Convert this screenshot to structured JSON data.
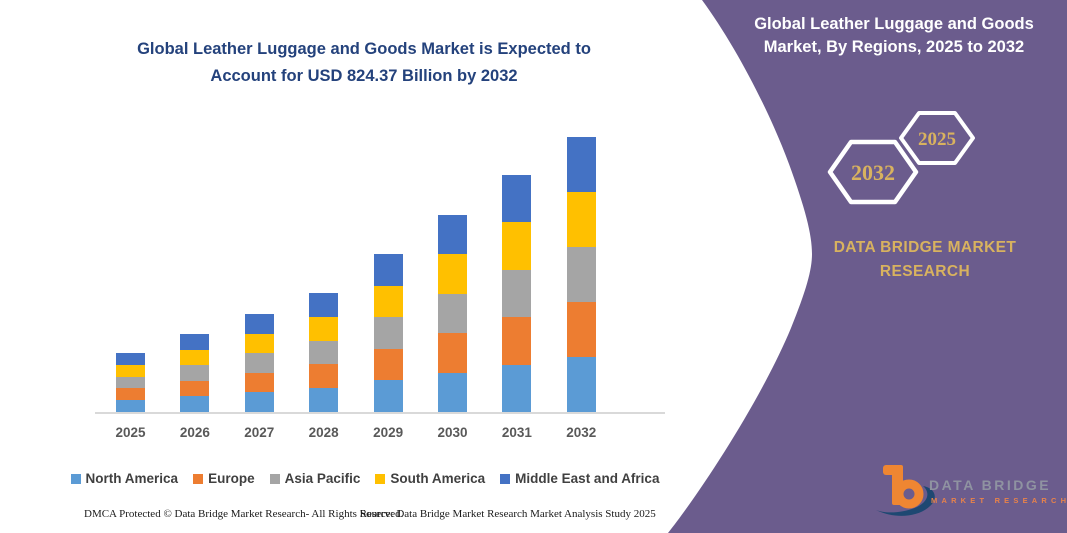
{
  "header": {
    "left_title": "Global Leather Luggage and Goods Market is Expected to Account for USD 824.37 Billion by 2032",
    "right_title": "Global Leather Luggage and Goods Market, By Regions, 2025 to 2032"
  },
  "badges": {
    "start_year": "2025",
    "end_year": "2032"
  },
  "brand": {
    "name": "DATA BRIDGE MARKET RESEARCH",
    "logo_text": "DATA BRIDGE",
    "logo_subtext": "MARKET RESEARCH"
  },
  "footer": {
    "dmca": "DMCA Protected © Data Bridge Market Research-  All Rights Reserved.",
    "source": "Source: Data Bridge Market Research  Market Analysis Study 2025"
  },
  "theme": {
    "panel_purple": "#6B5C8D",
    "gold": "#D8B25F",
    "title_blue": "#24427C",
    "axis_gray": "#D9D9D9",
    "label_gray": "#595959"
  },
  "chart_data": {
    "type": "bar",
    "stacked": true,
    "unit": "USD Billion",
    "x": [
      "2025",
      "2026",
      "2027",
      "2028",
      "2029",
      "2030",
      "2031",
      "2032"
    ],
    "series": [
      {
        "name": "North America",
        "color": "#5B9BD5",
        "values": [
          35.4,
          46.8,
          58.8,
          71.4,
          94.8,
          118.2,
          142.2,
          164.9
        ]
      },
      {
        "name": "Europe",
        "color": "#ED7D31",
        "values": [
          35.4,
          46.8,
          58.8,
          71.4,
          94.8,
          118.2,
          142.2,
          164.9
        ]
      },
      {
        "name": "Asia Pacific",
        "color": "#A5A5A5",
        "values": [
          35.4,
          46.8,
          58.8,
          71.4,
          94.8,
          118.2,
          142.2,
          164.9
        ]
      },
      {
        "name": "South America",
        "color": "#FFC000",
        "values": [
          35.4,
          46.8,
          58.8,
          71.4,
          94.8,
          118.2,
          142.2,
          164.9
        ]
      },
      {
        "name": "Middle East and Africa",
        "color": "#4472C4",
        "values": [
          35.4,
          46.8,
          58.8,
          71.4,
          94.8,
          118.2,
          142.2,
          164.9
        ]
      }
    ],
    "totals": [
      177,
      234,
      294,
      357,
      474,
      591,
      711,
      824.37
    ],
    "ylim": [
      0,
      900
    ],
    "gridlines": false,
    "y_axis_visible": false,
    "legend_position": "bottom"
  }
}
